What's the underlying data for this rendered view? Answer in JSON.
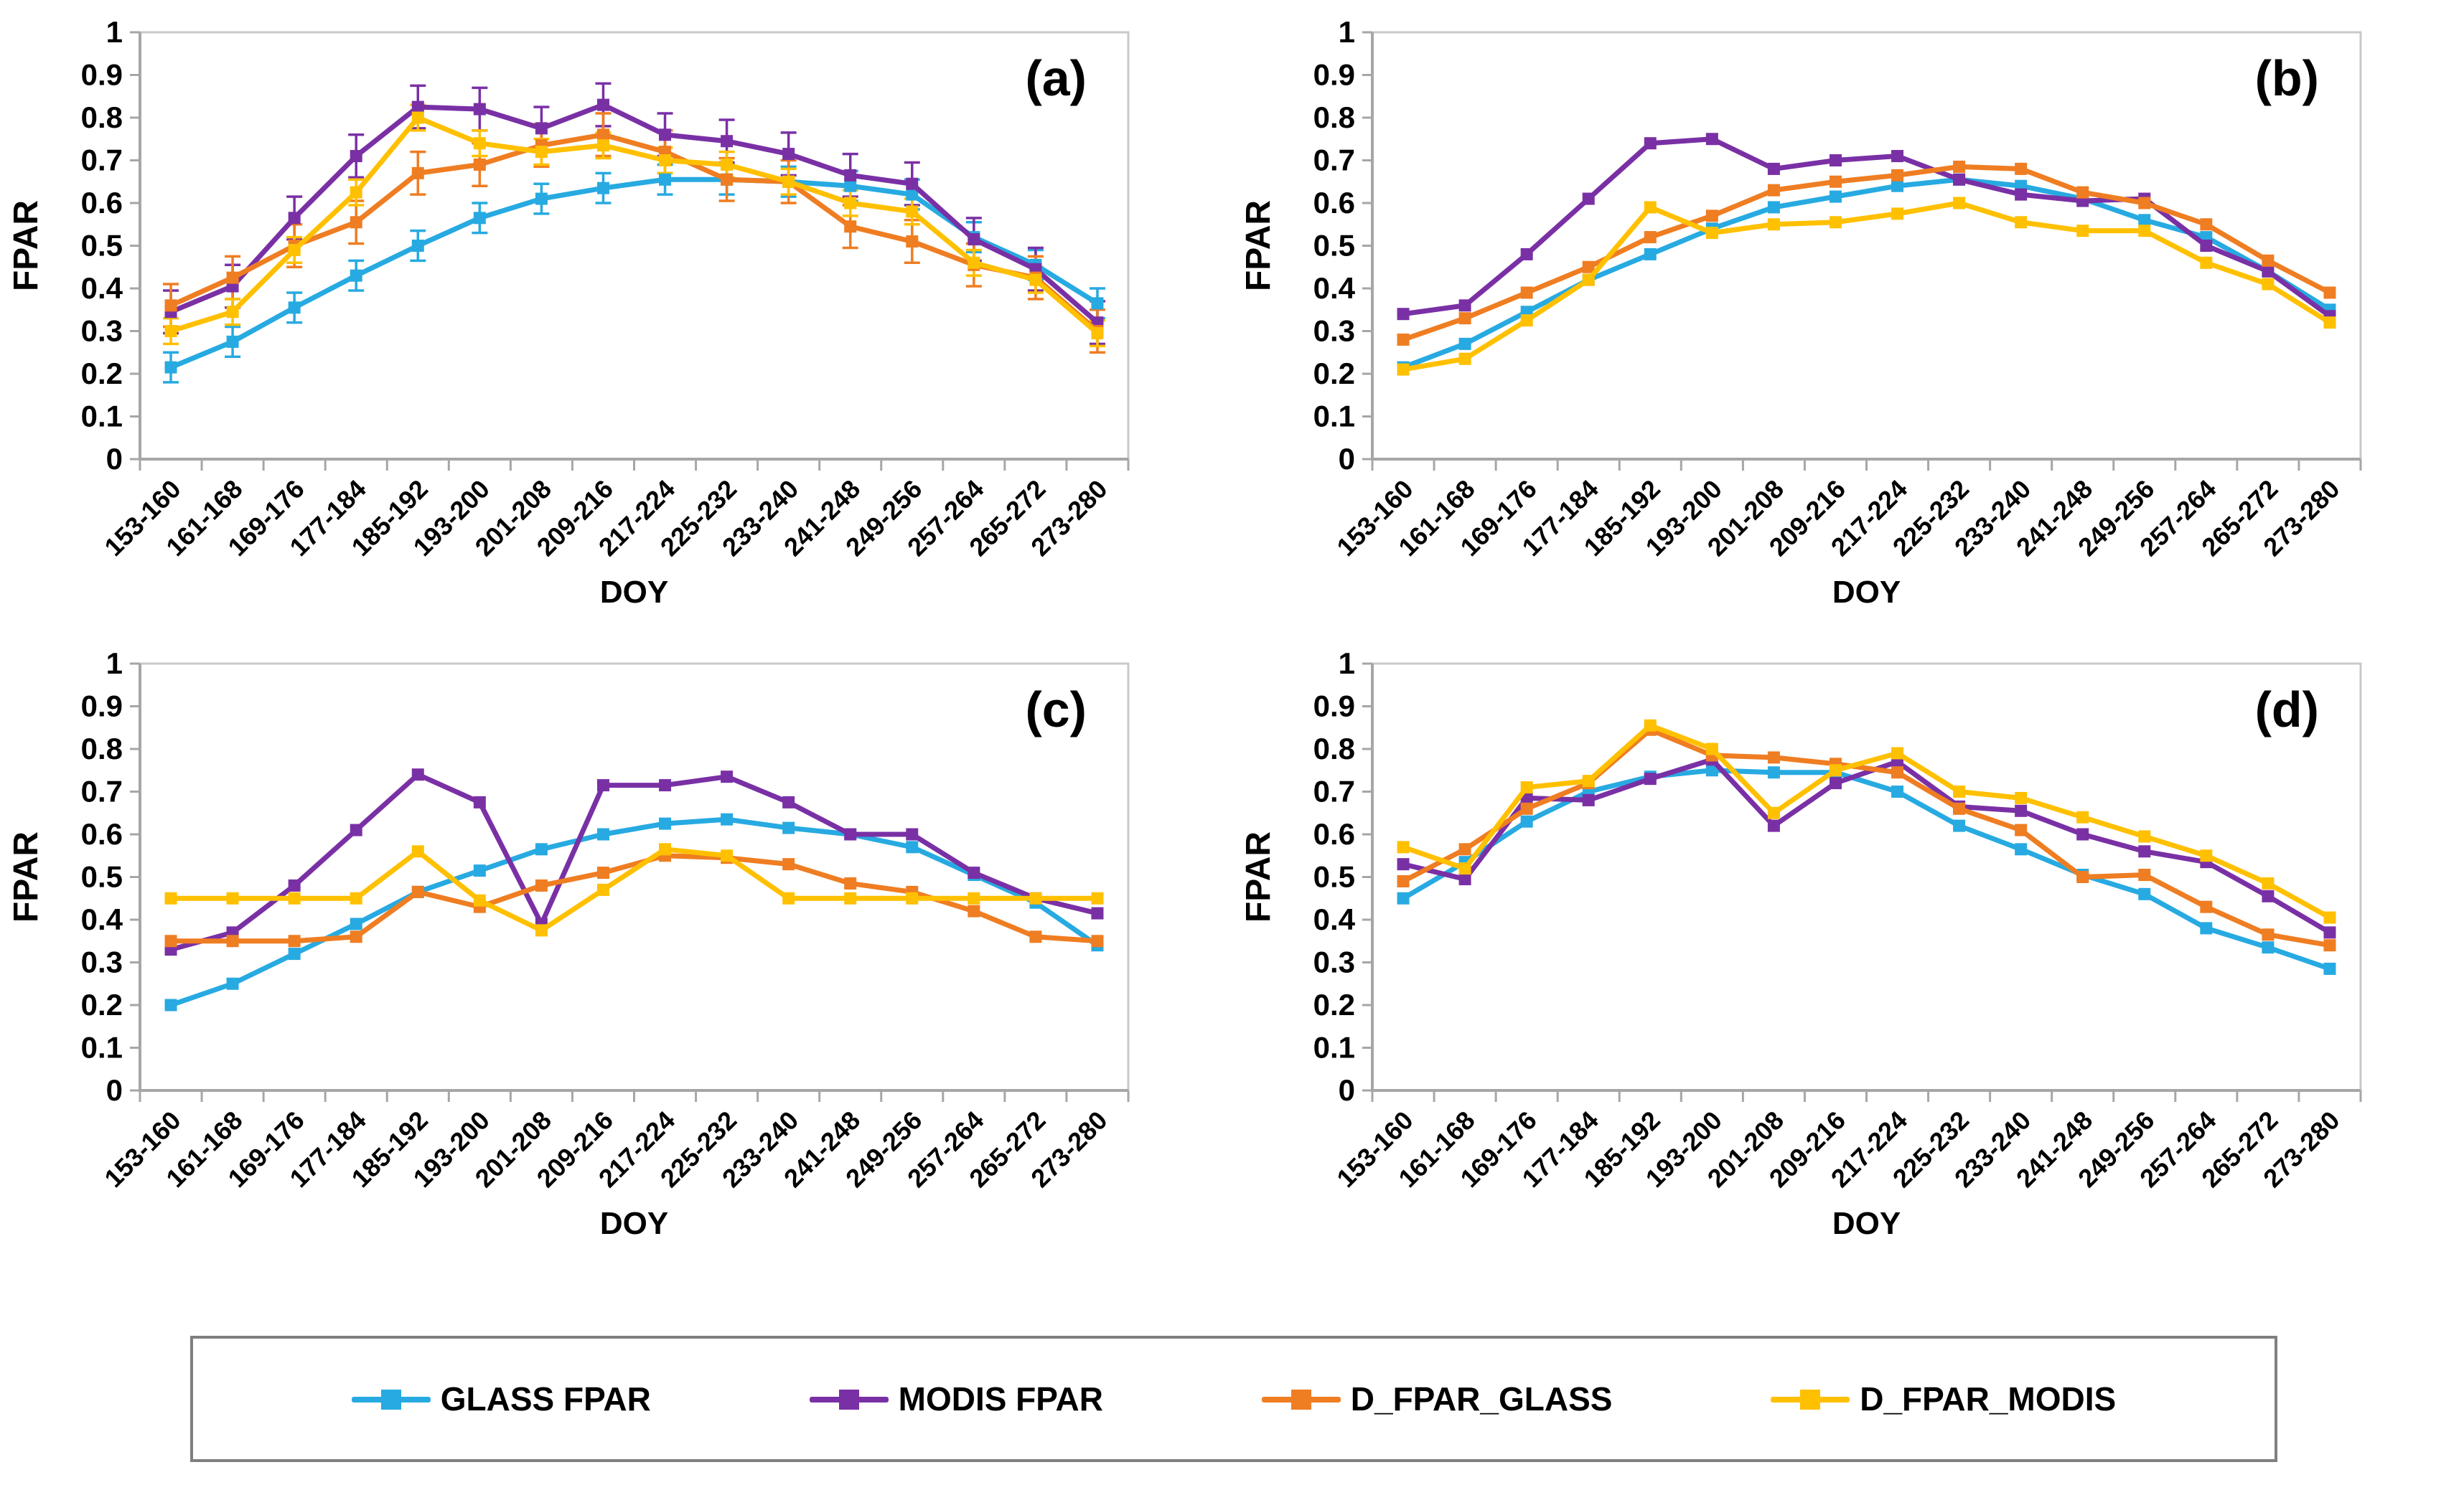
{
  "figure": {
    "background": "#ffffff",
    "axis_color": "#a6a6a6",
    "border_color": "#c9c9c9",
    "text_color": "#000000",
    "y_tick_labels": [
      "0",
      "0.1",
      "0.2",
      "0.3",
      "0.4",
      "0.5",
      "0.6",
      "0.7",
      "0.8",
      "0.9",
      "1"
    ]
  },
  "legend": {
    "items": [
      {
        "label": "GLASS FPAR",
        "color": "#27AAE1"
      },
      {
        "label": "MODIS FPAR",
        "color": "#7A30A5"
      },
      {
        "label": "D_FPAR_GLASS",
        "color": "#EF7D22"
      },
      {
        "label": "D_FPAR_MODIS",
        "color": "#FFC000"
      }
    ]
  },
  "chart_data": {
    "type": "line",
    "xlabel": "DOY",
    "ylabel": "FPAR",
    "ylim": [
      0,
      1
    ],
    "y_tick_step": 0.1,
    "grid": false,
    "legend_position": "bottom",
    "categories": [
      "153-160",
      "161-168",
      "169-176",
      "177-184",
      "185-192",
      "193-200",
      "201-208",
      "209-216",
      "217-224",
      "225-232",
      "233-240",
      "241-248",
      "249-256",
      "257-264",
      "265-272",
      "273-280"
    ],
    "panels": [
      {
        "label": "(a)",
        "error_bars": true,
        "series": [
          {
            "name": "GLASS FPAR",
            "color": "#27AAE1",
            "error": 0.035,
            "values": [
              0.215,
              0.275,
              0.355,
              0.43,
              0.5,
              0.565,
              0.61,
              0.635,
              0.655,
              0.655,
              0.65,
              0.64,
              0.62,
              0.52,
              0.455,
              0.365
            ]
          },
          {
            "name": "MODIS FPAR",
            "color": "#7A30A5",
            "error": 0.05,
            "values": [
              0.345,
              0.405,
              0.565,
              0.71,
              0.825,
              0.82,
              0.775,
              0.83,
              0.76,
              0.745,
              0.715,
              0.665,
              0.645,
              0.515,
              0.445,
              0.32
            ]
          },
          {
            "name": "D_FPAR_GLASS",
            "color": "#EF7D22",
            "error": 0.05,
            "values": [
              0.36,
              0.425,
              0.5,
              0.555,
              0.67,
              0.69,
              0.735,
              0.76,
              0.72,
              0.655,
              0.65,
              0.545,
              0.51,
              0.455,
              0.425,
              0.3
            ]
          },
          {
            "name": "D_FPAR_MODIS",
            "color": "#FFC000",
            "error": 0.03,
            "values": [
              0.3,
              0.345,
              0.49,
              0.625,
              0.8,
              0.74,
              0.72,
              0.735,
              0.7,
              0.69,
              0.65,
              0.6,
              0.58,
              0.46,
              0.42,
              0.295
            ]
          }
        ]
      },
      {
        "label": "(b)",
        "error_bars": false,
        "series": [
          {
            "name": "GLASS FPAR",
            "color": "#27AAE1",
            "values": [
              0.215,
              0.27,
              0.345,
              0.42,
              0.48,
              0.54,
              0.59,
              0.615,
              0.64,
              0.655,
              0.64,
              0.61,
              0.56,
              0.52,
              0.44,
              0.35
            ]
          },
          {
            "name": "MODIS FPAR",
            "color": "#7A30A5",
            "values": [
              0.34,
              0.36,
              0.48,
              0.61,
              0.74,
              0.75,
              0.68,
              0.7,
              0.71,
              0.655,
              0.62,
              0.605,
              0.61,
              0.5,
              0.44,
              0.335
            ]
          },
          {
            "name": "D_FPAR_GLASS",
            "color": "#EF7D22",
            "values": [
              0.28,
              0.33,
              0.39,
              0.45,
              0.52,
              0.57,
              0.63,
              0.65,
              0.665,
              0.685,
              0.68,
              0.625,
              0.6,
              0.55,
              0.465,
              0.39
            ]
          },
          {
            "name": "D_FPAR_MODIS",
            "color": "#FFC000",
            "values": [
              0.21,
              0.235,
              0.325,
              0.42,
              0.59,
              0.53,
              0.55,
              0.555,
              0.575,
              0.6,
              0.555,
              0.535,
              0.535,
              0.46,
              0.41,
              0.32
            ]
          }
        ]
      },
      {
        "label": "(c)",
        "error_bars": false,
        "series": [
          {
            "name": "GLASS FPAR",
            "color": "#27AAE1",
            "values": [
              0.2,
              0.25,
              0.32,
              0.39,
              0.465,
              0.515,
              0.565,
              0.6,
              0.625,
              0.635,
              0.615,
              0.6,
              0.57,
              0.505,
              0.44,
              0.34
            ]
          },
          {
            "name": "MODIS FPAR",
            "color": "#7A30A5",
            "values": [
              0.33,
              0.37,
              0.48,
              0.61,
              0.74,
              0.675,
              0.39,
              0.715,
              0.715,
              0.735,
              0.675,
              0.6,
              0.6,
              0.51,
              0.45,
              0.415
            ]
          },
          {
            "name": "D_FPAR_GLASS",
            "color": "#EF7D22",
            "values": [
              0.35,
              0.35,
              0.35,
              0.36,
              0.465,
              0.43,
              0.48,
              0.51,
              0.55,
              0.545,
              0.53,
              0.485,
              0.465,
              0.42,
              0.36,
              0.35
            ]
          },
          {
            "name": "D_FPAR_MODIS",
            "color": "#FFC000",
            "values": [
              0.45,
              0.45,
              0.45,
              0.45,
              0.56,
              0.445,
              0.375,
              0.47,
              0.565,
              0.55,
              0.45,
              0.45,
              0.45,
              0.45,
              0.45,
              0.45
            ]
          }
        ]
      },
      {
        "label": "(d)",
        "error_bars": false,
        "series": [
          {
            "name": "GLASS FPAR",
            "color": "#27AAE1",
            "values": [
              0.45,
              0.535,
              0.63,
              0.7,
              0.735,
              0.75,
              0.745,
              0.745,
              0.7,
              0.62,
              0.565,
              0.505,
              0.46,
              0.38,
              0.335,
              0.285
            ]
          },
          {
            "name": "MODIS FPAR",
            "color": "#7A30A5",
            "values": [
              0.53,
              0.495,
              0.685,
              0.68,
              0.73,
              0.775,
              0.62,
              0.72,
              0.77,
              0.665,
              0.655,
              0.6,
              0.56,
              0.535,
              0.455,
              0.37
            ]
          },
          {
            "name": "D_FPAR_GLASS",
            "color": "#EF7D22",
            "values": [
              0.49,
              0.565,
              0.66,
              0.72,
              0.845,
              0.785,
              0.78,
              0.765,
              0.745,
              0.66,
              0.61,
              0.5,
              0.505,
              0.43,
              0.365,
              0.34
            ]
          },
          {
            "name": "D_FPAR_MODIS",
            "color": "#FFC000",
            "values": [
              0.57,
              0.52,
              0.71,
              0.725,
              0.855,
              0.8,
              0.65,
              0.75,
              0.79,
              0.7,
              0.685,
              0.64,
              0.595,
              0.55,
              0.485,
              0.405
            ]
          }
        ]
      }
    ]
  }
}
